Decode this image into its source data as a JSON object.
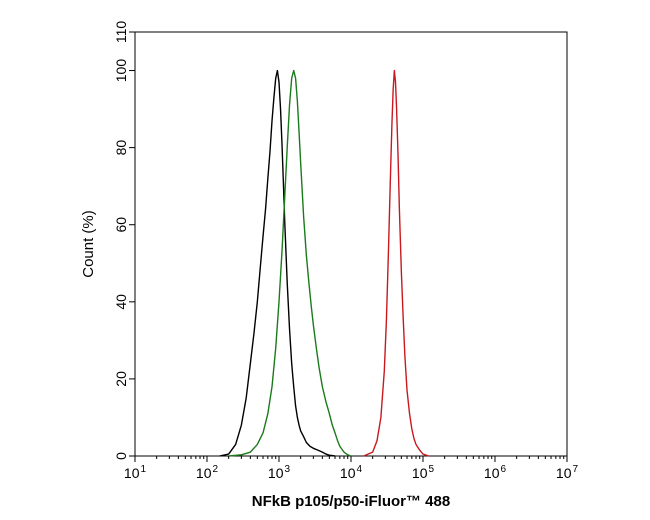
{
  "chart_data": {
    "type": "line",
    "title": "",
    "xlabel": "NFkB p105/p50-iFluor™ 488",
    "ylabel": "Count  (%)",
    "xscale": "log",
    "xlim": [
      10,
      10000000
    ],
    "ylim": [
      0,
      110
    ],
    "yticks": [
      {
        "value": 0,
        "label": "0"
      },
      {
        "value": 20,
        "label": "20"
      },
      {
        "value": 40,
        "label": "40"
      },
      {
        "value": 60,
        "label": "60"
      },
      {
        "value": 80,
        "label": "80"
      },
      {
        "value": 100,
        "label": "100"
      },
      {
        "value": 110,
        "label": "110"
      }
    ],
    "xticks": [
      {
        "value": 10,
        "base": "10",
        "exp": "1"
      },
      {
        "value": 100,
        "base": "10",
        "exp": "2"
      },
      {
        "value": 1000,
        "base": "10",
        "exp": "3"
      },
      {
        "value": 10000,
        "base": "10",
        "exp": "4"
      },
      {
        "value": 100000,
        "base": "10",
        "exp": "5"
      },
      {
        "value": 1000000,
        "base": "10",
        "exp": "6"
      },
      {
        "value": 10000000,
        "base": "10",
        "exp": "7"
      }
    ],
    "grid": false,
    "legend": "none",
    "series": [
      {
        "color": "#000000",
        "points": [
          [
            150,
            0
          ],
          [
            200,
            0.5
          ],
          [
            250,
            3
          ],
          [
            300,
            8
          ],
          [
            350,
            15
          ],
          [
            400,
            24
          ],
          [
            450,
            32
          ],
          [
            500,
            40
          ],
          [
            550,
            49
          ],
          [
            600,
            57
          ],
          [
            650,
            64
          ],
          [
            700,
            72
          ],
          [
            750,
            79
          ],
          [
            800,
            87
          ],
          [
            850,
            93
          ],
          [
            900,
            98
          ],
          [
            950,
            100
          ],
          [
            1000,
            97
          ],
          [
            1050,
            90
          ],
          [
            1100,
            81
          ],
          [
            1150,
            71
          ],
          [
            1200,
            61
          ],
          [
            1300,
            45
          ],
          [
            1400,
            33
          ],
          [
            1500,
            24
          ],
          [
            1600,
            18
          ],
          [
            1700,
            13
          ],
          [
            1800,
            10
          ],
          [
            1900,
            8
          ],
          [
            2000,
            6.5
          ],
          [
            2200,
            5
          ],
          [
            2400,
            3.5
          ],
          [
            2700,
            2.5
          ],
          [
            3000,
            2
          ],
          [
            3500,
            1.5
          ],
          [
            4000,
            1
          ],
          [
            4500,
            0.5
          ],
          [
            5000,
            0.2
          ],
          [
            6000,
            0
          ]
        ]
      },
      {
        "color": "#1b7a1b",
        "points": [
          [
            200,
            0
          ],
          [
            300,
            0.3
          ],
          [
            400,
            1
          ],
          [
            500,
            3
          ],
          [
            600,
            6
          ],
          [
            700,
            11
          ],
          [
            800,
            18
          ],
          [
            900,
            28
          ],
          [
            1000,
            40
          ],
          [
            1100,
            53
          ],
          [
            1200,
            67
          ],
          [
            1300,
            80
          ],
          [
            1400,
            91
          ],
          [
            1500,
            98
          ],
          [
            1600,
            100
          ],
          [
            1700,
            98
          ],
          [
            1800,
            92
          ],
          [
            1900,
            84
          ],
          [
            2000,
            76
          ],
          [
            2200,
            62
          ],
          [
            2400,
            52
          ],
          [
            2600,
            45
          ],
          [
            2800,
            39
          ],
          [
            3000,
            34
          ],
          [
            3300,
            28
          ],
          [
            3600,
            23
          ],
          [
            4000,
            18
          ],
          [
            4500,
            14
          ],
          [
            5000,
            11
          ],
          [
            5500,
            8
          ],
          [
            6000,
            6
          ],
          [
            6500,
            4
          ],
          [
            7000,
            2.5
          ],
          [
            8000,
            1
          ],
          [
            9000,
            0.3
          ],
          [
            10000,
            0
          ]
        ]
      },
      {
        "color": "#c8191e",
        "points": [
          [
            15000,
            0
          ],
          [
            20000,
            1
          ],
          [
            23000,
            4
          ],
          [
            26000,
            10
          ],
          [
            29000,
            22
          ],
          [
            31000,
            35
          ],
          [
            33000,
            52
          ],
          [
            35000,
            70
          ],
          [
            37000,
            86
          ],
          [
            38500,
            95
          ],
          [
            40000,
            100
          ],
          [
            41500,
            97
          ],
          [
            43000,
            90
          ],
          [
            45000,
            78
          ],
          [
            47000,
            64
          ],
          [
            50000,
            48
          ],
          [
            53000,
            36
          ],
          [
            56000,
            26
          ],
          [
            60000,
            17
          ],
          [
            65000,
            11
          ],
          [
            70000,
            7
          ],
          [
            75000,
            4.5
          ],
          [
            80000,
            3
          ],
          [
            90000,
            1.5
          ],
          [
            100000,
            0.5
          ],
          [
            120000,
            0
          ]
        ]
      }
    ]
  }
}
